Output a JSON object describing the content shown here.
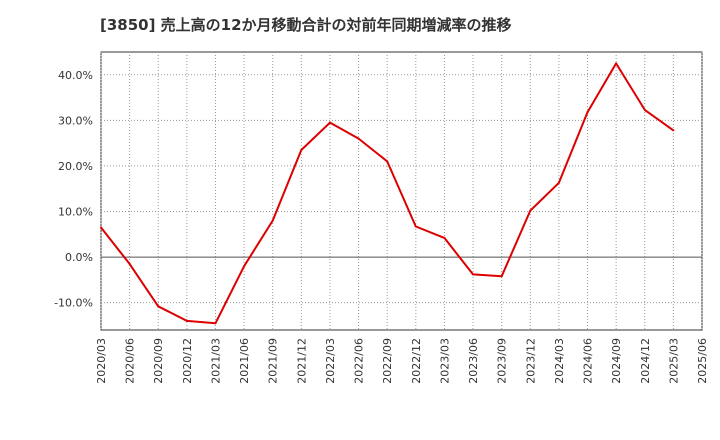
{
  "chart_data": {
    "type": "line",
    "title": "[3850]  売上高の12か月移動合計の対前年同期増減率の推移",
    "xlabel": "",
    "ylabel": "",
    "categories": [
      "2020/03",
      "2020/06",
      "2020/09",
      "2020/12",
      "2021/03",
      "2021/06",
      "2021/09",
      "2021/12",
      "2022/03",
      "2022/06",
      "2022/09",
      "2022/12",
      "2023/03",
      "2023/06",
      "2023/09",
      "2023/12",
      "2024/03",
      "2024/06",
      "2024/09",
      "2024/12",
      "2025/03",
      "2025/06"
    ],
    "series": [
      {
        "name": "売上高の12か月移動合計の対前年同期増減率",
        "color": "#dd0000",
        "values": [
          6.5,
          -1.5,
          -10.8,
          -14.0,
          -14.5,
          -2.0,
          8.0,
          23.5,
          29.5,
          26.0,
          21.0,
          6.7,
          4.2,
          -3.8,
          -4.2,
          10.2,
          16.3,
          31.8,
          42.5,
          32.3,
          27.8,
          null
        ]
      }
    ],
    "ylim": [
      -16,
      45
    ],
    "yticks": [
      -10,
      0,
      10,
      20,
      30,
      40
    ],
    "ytick_labels": [
      "-10.0%",
      "0.0%",
      "10.0%",
      "20.0%",
      "30.0%",
      "40.0%"
    ],
    "grid": true,
    "legend": "none"
  }
}
